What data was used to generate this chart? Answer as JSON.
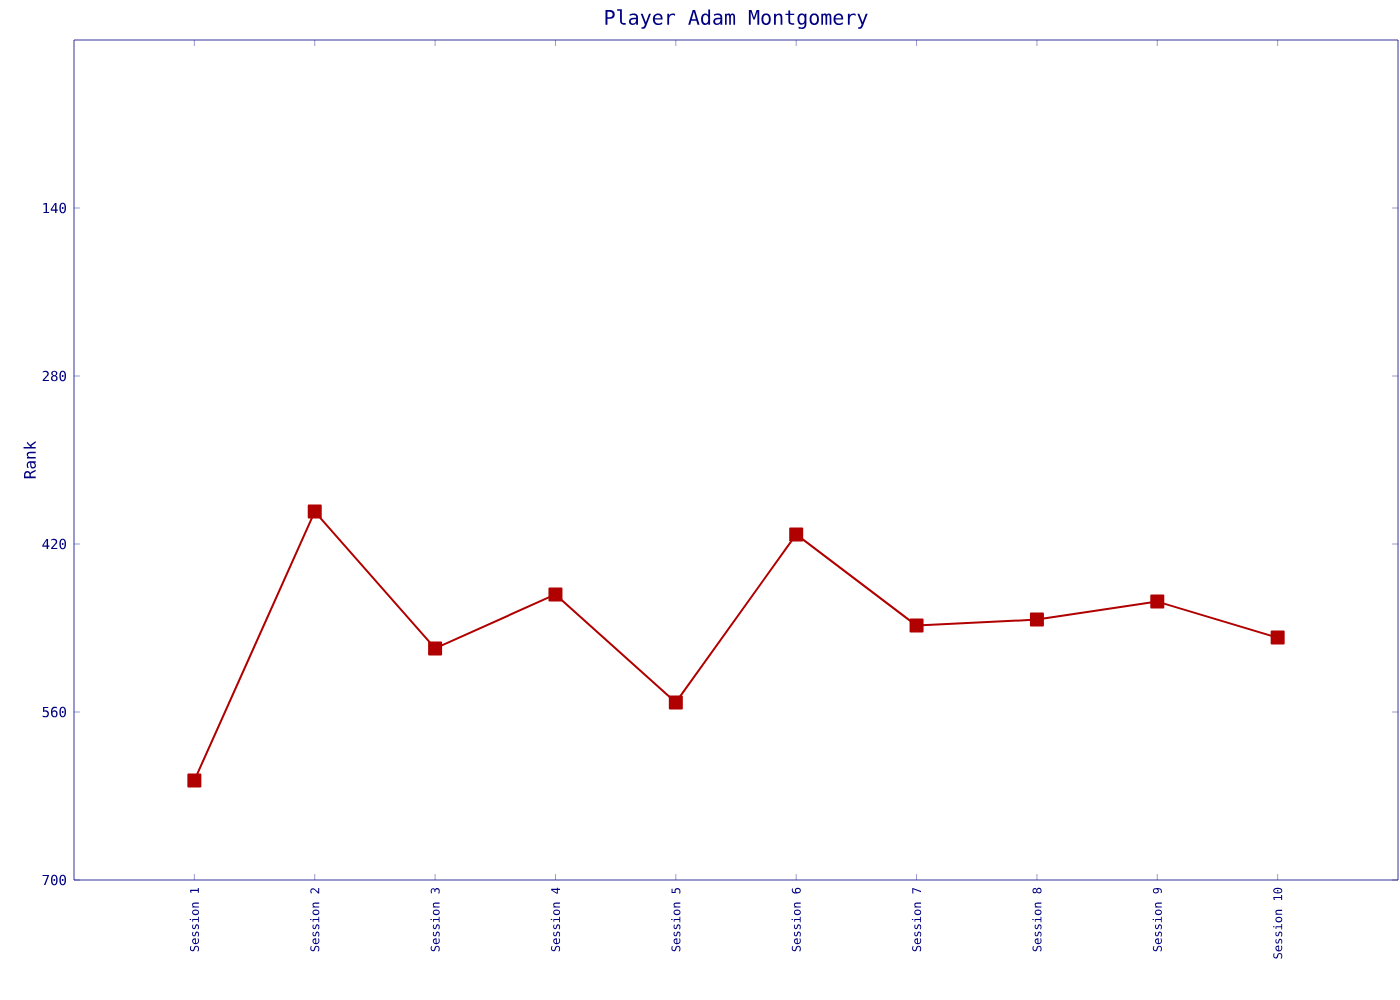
{
  "chart_data": {
    "type": "line",
    "title": "Player Adam Montgomery",
    "ylabel": "Rank",
    "categories": [
      "Session 1",
      "Session 2",
      "Session 3",
      "Session 4",
      "Session 5",
      "Session 6",
      "Session 7",
      "Session 8",
      "Session 9",
      "Session 10"
    ],
    "series": [
      {
        "color": "#b00000",
        "values": [
          617,
          393,
          507,
          462,
          552,
          412,
          488,
          483,
          468,
          498
        ]
      }
    ],
    "ylim": [
      700,
      0
    ],
    "yticks": [
      140,
      280,
      420,
      560,
      700
    ],
    "marker": "square",
    "line_style": "solid"
  }
}
